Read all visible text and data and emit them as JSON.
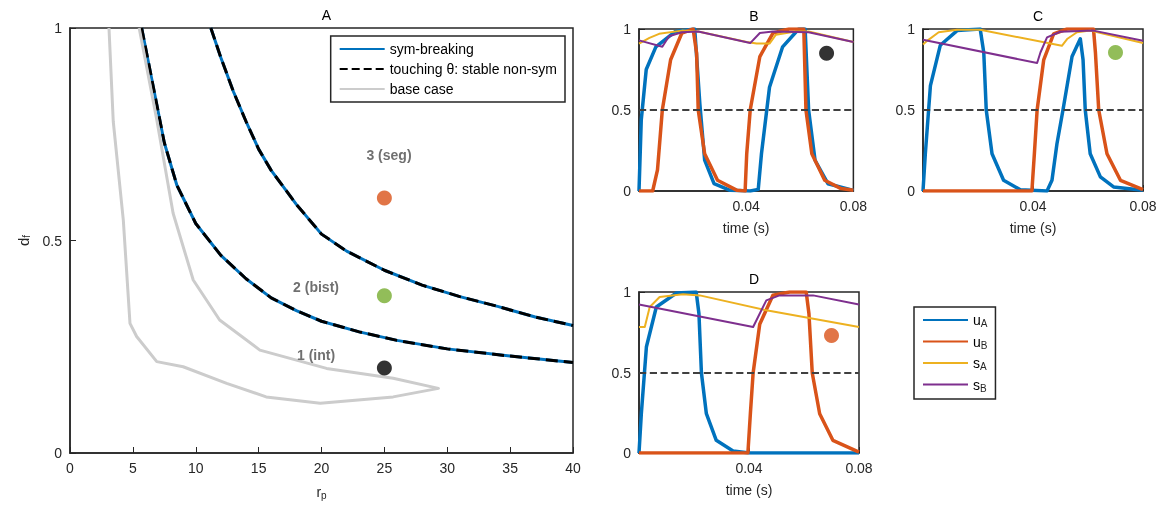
{
  "chart_data": [
    {
      "type": "line",
      "title": "A",
      "xlabel": "r$_{p}$",
      "ylabel": "d$_{f}$",
      "xlim": [
        0,
        40
      ],
      "ylim": [
        0,
        1
      ],
      "xticks": [
        0,
        5,
        10,
        15,
        20,
        25,
        30,
        35,
        40
      ],
      "yticks": [
        0,
        0.5,
        1
      ],
      "legend": "top right",
      "series": [
        {
          "name": "sym-breaking",
          "color": "#0072bd",
          "x": [
            11.2,
            12,
            13,
            14,
            15,
            16,
            18,
            20,
            22,
            25,
            28,
            31,
            34,
            37,
            40
          ],
          "values": [
            1,
            0.93,
            0.85,
            0.78,
            0.715,
            0.665,
            0.585,
            0.515,
            0.475,
            0.43,
            0.395,
            0.368,
            0.345,
            0.32,
            0.3
          ]
        },
        {
          "color": "#0072bd",
          "x": [
            5.7,
            6.5,
            7.5,
            8.5,
            10,
            12,
            14,
            16,
            18,
            20,
            23,
            26,
            30,
            35,
            40
          ],
          "values": [
            1,
            0.88,
            0.73,
            0.63,
            0.54,
            0.465,
            0.41,
            0.365,
            0.335,
            0.31,
            0.285,
            0.265,
            0.245,
            0.228,
            0.213
          ]
        },
        {
          "name": "touching θ: stable non-sym",
          "color": "#000000",
          "line_style": "dashed",
          "x": [
            11.2,
            12,
            13,
            14,
            15,
            16,
            18,
            20,
            22,
            25,
            28,
            31,
            34,
            37,
            40
          ],
          "values": [
            1,
            0.93,
            0.85,
            0.78,
            0.715,
            0.665,
            0.585,
            0.515,
            0.475,
            0.43,
            0.395,
            0.368,
            0.345,
            0.32,
            0.3
          ]
        },
        {
          "color": "#000000",
          "line_style": "dashed",
          "x": [
            5.7,
            6.5,
            7.5,
            8.5,
            10,
            12,
            14,
            16,
            18,
            20,
            23,
            26,
            30,
            35,
            40
          ],
          "values": [
            1,
            0.88,
            0.73,
            0.63,
            0.54,
            0.465,
            0.41,
            0.365,
            0.335,
            0.31,
            0.285,
            0.265,
            0.245,
            0.228,
            0.213
          ]
        },
        {
          "name": "base case",
          "color": "#cccccc",
          "x": [
            3.1,
            3.44,
            4.24,
            4.77,
            5.3,
            6.9,
            9.0,
            12.46,
            15.6,
            19.9,
            25.7,
            29.3,
            25.7,
            20.4,
            15.1,
            11.9,
            9.8,
            8.2,
            6.9,
            5.5
          ],
          "values": [
            1,
            0.78,
            0.548,
            0.305,
            0.274,
            0.215,
            0.203,
            0.164,
            0.132,
            0.117,
            0.132,
            0.152,
            0.176,
            0.199,
            0.242,
            0.313,
            0.407,
            0.564,
            0.784,
            1
          ]
        },
        {
          "type": "scatter",
          "x": [
            25,
            25,
            25
          ],
          "values": [
            0.6,
            0.37,
            0.2
          ],
          "colors": [
            "#d95319",
            "#77ac30",
            "#000000"
          ]
        }
      ],
      "annotations": [
        "3 (seg)",
        "2 (bist)",
        "1 (int)"
      ]
    },
    {
      "type": "line",
      "title": "B",
      "xlabel": "time (s)",
      "xlim": [
        0,
        0.08
      ],
      "ylim": [
        0,
        1
      ],
      "xticks": [
        0.04,
        0.08
      ],
      "yticks": [
        0,
        0.5,
        1
      ],
      "ref_lines": [
        {
          "axis": "y",
          "value": 0.5,
          "color": "#404040",
          "line_style": "dashed"
        }
      ],
      "series": [
        {
          "color": "#0072bd",
          "x": [
            0,
            0.00085,
            0.0027,
            0.0063,
            0.0136,
            0.0208,
            0.0227,
            0.0245,
            0.028,
            0.034,
            0.0415,
            0.0445,
            0.0457,
            0.0487,
            0.0536,
            0.0596,
            0.062,
            0.0633,
            0.0657,
            0.0705,
            0.08
          ],
          "values": [
            0,
            0.44,
            0.75,
            0.89,
            0.985,
            1,
            0.54,
            0.19,
            0.045,
            0.004,
            0,
            0.01,
            0.23,
            0.64,
            0.89,
            1,
            1,
            0.5,
            0.19,
            0.045,
            0.004
          ]
        },
        {
          "color": "#d95319",
          "x": [
            0,
            0.0051,
            0.0069,
            0.0087,
            0.0118,
            0.016,
            0.0202,
            0.0215,
            0.0221,
            0.0245,
            0.0293,
            0.0366,
            0.0396,
            0.0402,
            0.0415,
            0.0451,
            0.05,
            0.056,
            0.0615,
            0.0623,
            0.0645,
            0.0693,
            0.0754,
            0.08
          ],
          "values": [
            0,
            0,
            0.13,
            0.5,
            0.81,
            0.975,
            1,
            0.85,
            0.5,
            0.23,
            0.066,
            0.004,
            0,
            0.23,
            0.5,
            0.83,
            0.975,
            1,
            1,
            0.5,
            0.23,
            0.066,
            0.015,
            0.004
          ]
        },
        {
          "color": "#edb120",
          "x": [
            0,
            0.0039,
            0.0075,
            0.016,
            0.0221,
            0.0402,
            0.0439,
            0.0487,
            0.0511,
            0.0584,
            0.0633,
            0.08
          ],
          "values": [
            0.91,
            0.945,
            0.97,
            0.99,
            0.985,
            0.92,
            0.91,
            0.91,
            0.965,
            0.985,
            0.985,
            0.92
          ]
        },
        {
          "color": "#7e2f8e",
          "x": [
            0,
            0.0087,
            0.0112,
            0.016,
            0.0221,
            0.0415,
            0.0451,
            0.05,
            0.0633,
            0.08
          ],
          "values": [
            0.93,
            0.89,
            0.955,
            0.98,
            0.985,
            0.913,
            0.975,
            0.985,
            0.98,
            0.92
          ]
        },
        {
          "type": "scatter",
          "x": [
            0.07
          ],
          "values": [
            0.85
          ],
          "color": "#000000"
        }
      ]
    },
    {
      "type": "line",
      "title": "C",
      "xlabel": "time (s)",
      "xlim": [
        0,
        0.08
      ],
      "ylim": [
        0,
        1
      ],
      "xticks": [
        0.04,
        0.08
      ],
      "yticks": [
        0,
        0.5,
        1
      ],
      "ref_lines": [
        {
          "axis": "y",
          "value": 0.5,
          "color": "#404040",
          "line_style": "dashed"
        }
      ],
      "series": [
        {
          "color": "#0072bd",
          "x": [
            0,
            0.00085,
            0.0027,
            0.0063,
            0.0124,
            0.0208,
            0.0221,
            0.023,
            0.0251,
            0.0293,
            0.0354,
            0.0451,
            0.0469,
            0.0487,
            0.0509,
            0.0542,
            0.0572,
            0.0582,
            0.059,
            0.0608,
            0.0645,
            0.0693,
            0.08
          ],
          "values": [
            0,
            0.23,
            0.65,
            0.9,
            0.99,
            1,
            0.855,
            0.5,
            0.23,
            0.066,
            0.008,
            0,
            0.066,
            0.29,
            0.5,
            0.83,
            0.94,
            0.81,
            0.5,
            0.23,
            0.087,
            0.025,
            0.004
          ]
        },
        {
          "color": "#d95319",
          "x": [
            0,
            0.0396,
            0.0405,
            0.0415,
            0.0439,
            0.0475,
            0.0524,
            0.062,
            0.0627,
            0.0639,
            0.0669,
            0.0718,
            0.08
          ],
          "values": [
            0,
            0,
            0.23,
            0.5,
            0.81,
            0.97,
            1,
            1,
            0.855,
            0.5,
            0.23,
            0.066,
            0.008
          ]
        },
        {
          "color": "#edb120",
          "x": [
            0,
            0.0015,
            0.0057,
            0.0124,
            0.0208,
            0.0505,
            0.0524,
            0.056,
            0.0608,
            0.08
          ],
          "values": [
            0.905,
            0.927,
            0.98,
            0.996,
            0.996,
            0.896,
            0.938,
            0.98,
            0.99,
            0.913
          ]
        },
        {
          "color": "#7e2f8e",
          "x": [
            0,
            0.0415,
            0.0427,
            0.0451,
            0.0499,
            0.062,
            0.08
          ],
          "values": [
            0.934,
            0.79,
            0.855,
            0.948,
            0.983,
            0.99,
            0.927
          ]
        },
        {
          "type": "scatter",
          "x": [
            0.07
          ],
          "values": [
            0.855
          ],
          "color": "#77ac30"
        }
      ]
    },
    {
      "type": "line",
      "title": "D",
      "xlabel": "time (s)",
      "xlim": [
        0,
        0.08
      ],
      "ylim": [
        0,
        1
      ],
      "xticks": [
        0.04,
        0.08
      ],
      "yticks": [
        0,
        0.5,
        1
      ],
      "legend": "right",
      "ref_lines": [
        {
          "axis": "y",
          "value": 0.5,
          "color": "#404040",
          "line_style": "dashed"
        }
      ],
      "series": [
        {
          "name": "u$_{A}$",
          "color": "#0072bd",
          "x": [
            0,
            0.00085,
            0.0027,
            0.0063,
            0.0136,
            0.0208,
            0.0218,
            0.0227,
            0.0245,
            0.0281,
            0.0342,
            0.0402,
            0.08
          ],
          "values": [
            0,
            0.244,
            0.66,
            0.907,
            0.994,
            1,
            0.865,
            0.497,
            0.244,
            0.079,
            0.012,
            0,
            0
          ]
        },
        {
          "name": "u$_{B}$",
          "color": "#d95319",
          "x": [
            0,
            0.0396,
            0.0405,
            0.0415,
            0.0439,
            0.0487,
            0.0548,
            0.0608,
            0.0618,
            0.063,
            0.0657,
            0.0705,
            0.08
          ],
          "values": [
            0,
            0,
            0.244,
            0.497,
            0.8,
            0.98,
            1,
            1,
            0.865,
            0.497,
            0.244,
            0.079,
            0.006
          ]
        },
        {
          "name": "s$_{A}$",
          "color": "#edb120",
          "x": [
            0,
            0.0021,
            0.0039,
            0.0075,
            0.016,
            0.0221,
            0.0463,
            0.08
          ],
          "values": [
            0.783,
            0.783,
            0.907,
            0.969,
            0.986,
            0.979,
            0.886,
            0.783
          ]
        },
        {
          "name": "s$_{B}$",
          "color": "#7e2f8e",
          "x": [
            0,
            0.0415,
            0.0433,
            0.0463,
            0.0511,
            0.0633,
            0.08
          ],
          "values": [
            0.923,
            0.783,
            0.845,
            0.948,
            0.979,
            0.979,
            0.923
          ]
        },
        {
          "type": "scatter",
          "x": [
            0.07
          ],
          "values": [
            0.73
          ],
          "color": "#d95319"
        }
      ]
    }
  ]
}
